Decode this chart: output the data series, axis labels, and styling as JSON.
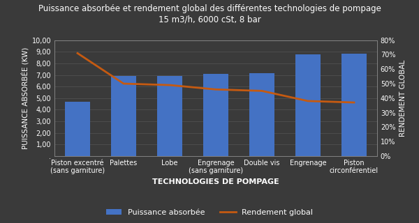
{
  "title_line1": "Puissance absorbée et rendement global des différentes technologies de pompage",
  "title_line2": "15 m3/h, 6000 cSt, 8 bar",
  "categories": [
    "Piston excentré\n(sans garniture)",
    "Palettes",
    "Lobe",
    "Engrenage\n(sans garniture)",
    "Double vis",
    "Engrenage",
    "Piston\ncirconférentiel"
  ],
  "puissance": [
    4.7,
    6.9,
    6.9,
    7.1,
    7.15,
    8.8,
    8.85
  ],
  "rendement": [
    0.71,
    0.5,
    0.49,
    0.46,
    0.45,
    0.38,
    0.37
  ],
  "bar_color": "#4472C4",
  "line_color": "#C55A11",
  "background_color": "#3A3A3A",
  "axes_bg_color": "#3A3A3A",
  "text_color": "#FFFFFF",
  "grid_color": "#555555",
  "xlabel": "TECHNOLOGIES DE POMPAGE",
  "ylabel_left": "PUISSANCE ABSORBÉE (KW)",
  "ylabel_right": "RENDEMENT GLOBAL",
  "ylim_left": [
    0,
    10.0
  ],
  "ylim_right": [
    0.0,
    0.8
  ],
  "yticks_left": [
    0.0,
    1.0,
    2.0,
    3.0,
    4.0,
    5.0,
    6.0,
    7.0,
    8.0,
    9.0,
    10.0
  ],
  "ytick_labels_left": [
    ".",
    "1,00",
    "2,00",
    "3,00",
    "4,00",
    "5,00",
    "6,00",
    "7,00",
    "8,00",
    "9,00",
    "10,00"
  ],
  "yticks_right": [
    0.0,
    0.1,
    0.2,
    0.3,
    0.4,
    0.5,
    0.6,
    0.7,
    0.8
  ],
  "ytick_labels_right": [
    "0%",
    "10%",
    "20%",
    "30%",
    "40%",
    "50%",
    "60%",
    "70%",
    "80%"
  ],
  "legend_bar_label": "Puissance absorbée",
  "legend_line_label": "Rendement global",
  "title_fontsize": 8.5,
  "label_fontsize": 7.5,
  "tick_fontsize": 7,
  "legend_fontsize": 8,
  "xlabel_fontsize": 8
}
